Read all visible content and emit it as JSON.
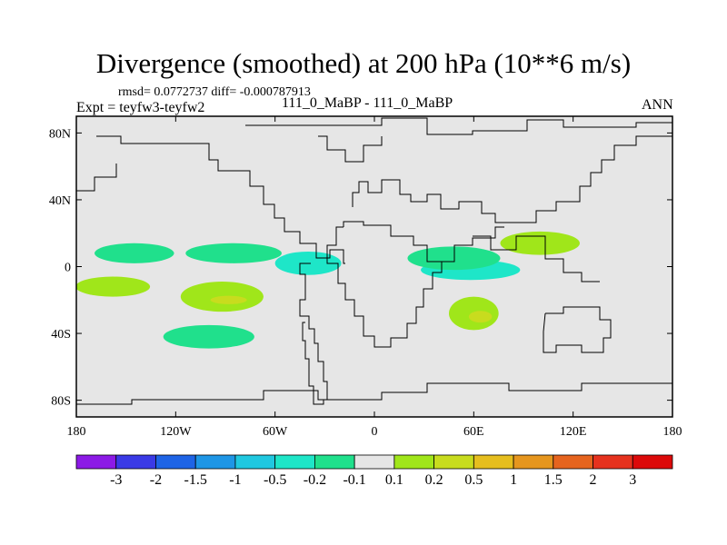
{
  "chart_data": {
    "type": "heatmap",
    "title": "Divergence (smoothed) at 200 hPa (10**6 m/s)",
    "stats": "rmsd= 0.0772737 diff= -0.000787913",
    "experiment": "Expt = teyfw3-teyfw2",
    "case": "111_0_MaBP - 111_0_MaBP",
    "season": "ANN",
    "x_ticks": [
      "180",
      "120W",
      "60W",
      "0",
      "60E",
      "120E",
      "180"
    ],
    "x_tick_values": [
      -180,
      -120,
      -60,
      0,
      60,
      120,
      180
    ],
    "y_ticks": [
      "80N",
      "40N",
      "0",
      "40S",
      "80S"
    ],
    "y_tick_values": [
      80,
      40,
      0,
      -40,
      -80
    ],
    "xlim": [
      -180,
      180
    ],
    "ylim": [
      -90,
      90
    ],
    "colorbar": {
      "labels": [
        "-3",
        "-2",
        "-1.5",
        "-1",
        "-0.5",
        "-0.2",
        "-0.1",
        "0.1",
        "0.2",
        "0.5",
        "1",
        "1.5",
        "2",
        "3"
      ],
      "colors": [
        "#8c1ae6",
        "#3a3ae6",
        "#1e64e6",
        "#1e96e6",
        "#20c8e0",
        "#1ee6c8",
        "#20e08c",
        "#e6e6e6",
        "#a0e61a",
        "#c8dc1e",
        "#e6be1e",
        "#e6961e",
        "#e6641e",
        "#e6321e",
        "#dc0a0a"
      ]
    },
    "regions": [
      {
        "value": "-0.2",
        "color": "#1ee6c8",
        "lon": -40,
        "lat": 2,
        "w": 40,
        "h": 14
      },
      {
        "value": "-0.2",
        "color": "#1ee6c8",
        "lon": 58,
        "lat": -2,
        "w": 60,
        "h": 12
      },
      {
        "value": "-0.1",
        "color": "#20e08c",
        "lon": -145,
        "lat": 8,
        "w": 48,
        "h": 12
      },
      {
        "value": "-0.1",
        "color": "#20e08c",
        "lon": -85,
        "lat": 8,
        "w": 58,
        "h": 12
      },
      {
        "value": "-0.1",
        "color": "#20e08c",
        "lon": -100,
        "lat": -42,
        "w": 55,
        "h": 14
      },
      {
        "value": "-0.1",
        "color": "#20e08c",
        "lon": 48,
        "lat": 5,
        "w": 56,
        "h": 14
      },
      {
        "value": "0.2",
        "color": "#a0e61a",
        "lon": -158,
        "lat": -12,
        "w": 45,
        "h": 12
      },
      {
        "value": "0.2",
        "color": "#a0e61a",
        "lon": -92,
        "lat": -18,
        "w": 50,
        "h": 18
      },
      {
        "value": "0.2",
        "color": "#a0e61a",
        "lon": 60,
        "lat": -28,
        "w": 30,
        "h": 20
      },
      {
        "value": "0.2",
        "color": "#a0e61a",
        "lon": 100,
        "lat": 14,
        "w": 48,
        "h": 14
      },
      {
        "value": "0.5",
        "color": "#c8dc1e",
        "lon": -88,
        "lat": -20,
        "w": 22,
        "h": 5
      },
      {
        "value": "0.5",
        "color": "#c8dc1e",
        "lon": 64,
        "lat": -30,
        "w": 14,
        "h": 7
      }
    ]
  }
}
